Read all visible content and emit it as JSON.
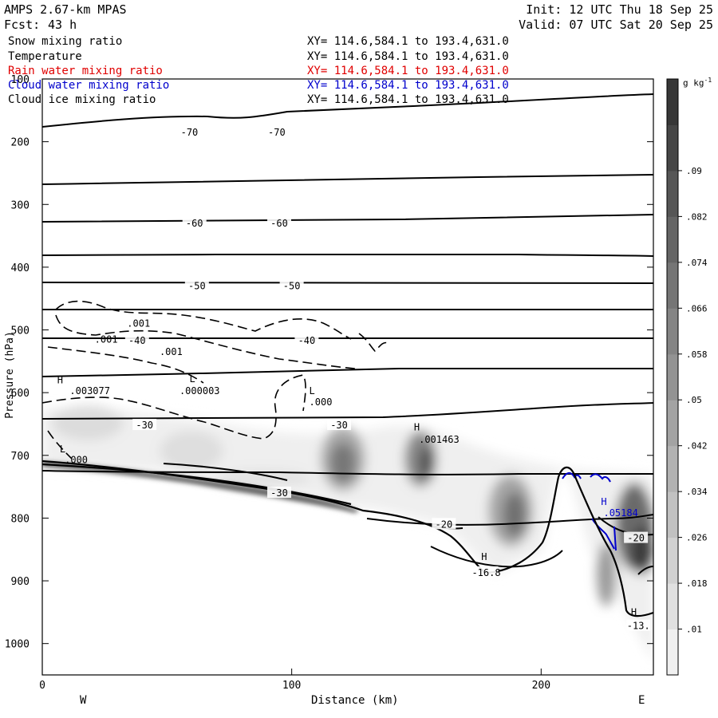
{
  "header": {
    "model": "AMPS 2.67-km MPAS",
    "fcst_label": "Fcst:",
    "fcst_value": "43 h",
    "init": "Init: 12 UTC Thu 18 Sep 25",
    "valid": "Valid: 07 UTC Sat 20 Sep 25"
  },
  "fields": [
    {
      "name": "Snow mixing ratio",
      "xy": "XY= 114.6,584.1 to 193.4,631.0",
      "color": "#000000"
    },
    {
      "name": "Temperature",
      "xy": "XY= 114.6,584.1 to 193.4,631.0",
      "color": "#000000"
    },
    {
      "name": "Rain water mixing ratio",
      "xy": "XY= 114.6,584.1 to 193.4,631.0",
      "color": "#e00000"
    },
    {
      "name": "Cloud water mixing ratio",
      "xy": "XY= 114.6,584.1 to 193.4,631.0",
      "color": "#0000cc"
    },
    {
      "name": "Cloud ice mixing ratio",
      "xy": "XY= 114.6,584.1 to 193.4,631.0",
      "color": "#000000"
    }
  ],
  "axes": {
    "ylabel": "Pressure (hPa)",
    "xlabel": "Distance (km)",
    "west": "W",
    "east": "E"
  },
  "colorbar": {
    "unit": "g kg",
    "unit_exp": "-1",
    "ticks": [
      ".01",
      ".018",
      ".026",
      ".034",
      ".042",
      ".05",
      ".058",
      ".066",
      ".074",
      ".082",
      ".09"
    ]
  },
  "chart_data": {
    "type": "heatmap",
    "x_range": [
      0,
      245
    ],
    "y_range": [
      1050,
      100
    ],
    "x_ticks": [
      0,
      100,
      200
    ],
    "y_ticks": [
      100,
      200,
      300,
      400,
      500,
      600,
      700,
      800,
      900,
      1000
    ],
    "temperature_isotherm_labels": [
      {
        "text": "-70",
        "x": 59,
        "p": 185
      },
      {
        "text": "-70",
        "x": 94,
        "p": 185
      },
      {
        "text": "-60",
        "x": 61,
        "p": 330
      },
      {
        "text": "-60",
        "x": 95,
        "p": 330
      },
      {
        "text": "-50",
        "x": 62,
        "p": 430
      },
      {
        "text": "-50",
        "x": 100,
        "p": 430
      },
      {
        "text": "-40",
        "x": 38,
        "p": 517
      },
      {
        "text": "-40",
        "x": 106,
        "p": 517
      },
      {
        "text": "-30",
        "x": 41,
        "p": 652
      },
      {
        "text": "-30",
        "x": 119,
        "p": 652
      },
      {
        "text": "-30",
        "x": 95,
        "p": 760
      },
      {
        "text": "-20",
        "x": 161,
        "p": 810
      },
      {
        "text": "-20",
        "x": 238,
        "p": 832
      },
      {
        "text": "-16.8",
        "x": 178,
        "p": 887
      },
      {
        "text": "-13.",
        "x": 239,
        "p": 972
      }
    ],
    "contour_labels": [
      {
        "text": ".001",
        "x": 34,
        "p": 490,
        "color": "#000000"
      },
      {
        "text": ".001",
        "x": 21,
        "p": 515,
        "color": "#000000"
      },
      {
        "text": ".001",
        "x": 47,
        "p": 535,
        "color": "#000000"
      },
      {
        "text": "H",
        "x": 6,
        "p": 580,
        "color": "#000000"
      },
      {
        "text": ".003077",
        "x": 11,
        "p": 597,
        "color": "#000000"
      },
      {
        "text": "L",
        "x": 59,
        "p": 578,
        "color": "#000000"
      },
      {
        "text": ".000003",
        "x": 55,
        "p": 597,
        "color": "#000000"
      },
      {
        "text": "L",
        "x": 107,
        "p": 597,
        "color": "#000000"
      },
      {
        "text": ".000",
        "x": 107,
        "p": 615,
        "color": "#000000"
      },
      {
        "text": "H",
        "x": 149,
        "p": 655,
        "color": "#000000"
      },
      {
        "text": ".001463",
        "x": 151,
        "p": 675,
        "color": "#000000"
      },
      {
        "text": "L",
        "x": 7,
        "p": 690,
        "color": "#000000"
      },
      {
        "text": ".000",
        "x": 9,
        "p": 707,
        "color": "#000000"
      },
      {
        "text": "H",
        "x": 176,
        "p": 862,
        "color": "#000000"
      },
      {
        "text": "H",
        "x": 224,
        "p": 774,
        "color": "#0000cc"
      },
      {
        "text": ".05184",
        "x": 225,
        "p": 792,
        "color": "#0000cc"
      },
      {
        "text": "H",
        "x": 236,
        "p": 950,
        "color": "#000000"
      }
    ]
  }
}
